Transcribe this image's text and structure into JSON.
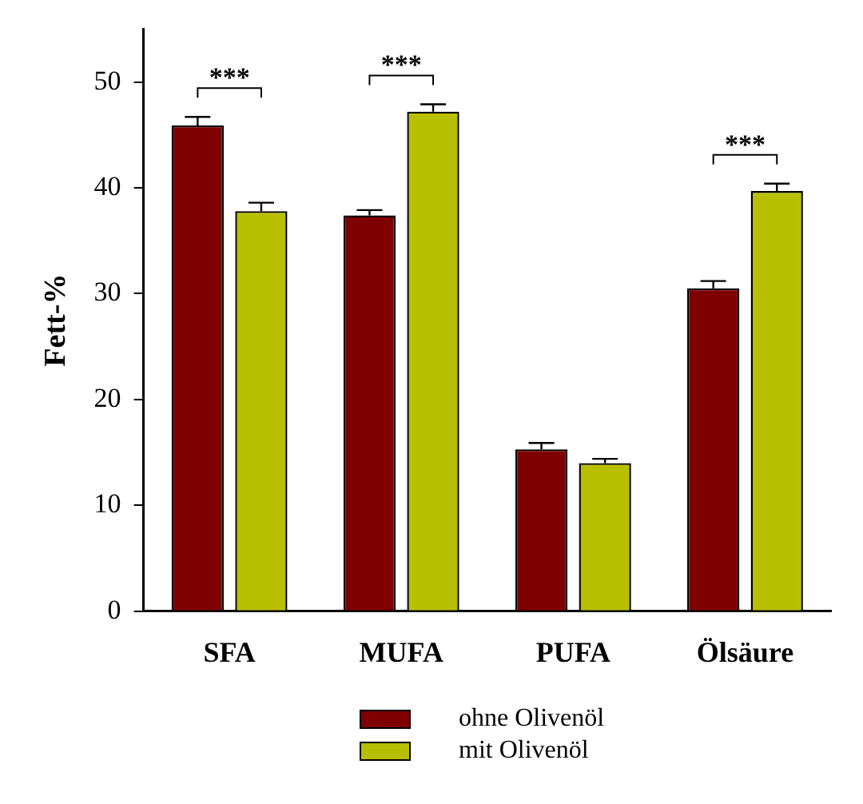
{
  "chart_data": {
    "type": "bar",
    "ylabel": "Fett-%",
    "categories": [
      "SFA",
      "MUFA",
      "PUFA",
      "Ölsäure"
    ],
    "series": [
      {
        "name": "ohne Olivenöl",
        "color": "#7f0000",
        "values": [
          45.9,
          37.4,
          15.3,
          30.5
        ],
        "errors": [
          [
            45.9,
            46.7
          ],
          [
            37.4,
            37.9
          ],
          [
            15.3,
            15.9
          ],
          [
            30.5,
            31.2
          ]
        ]
      },
      {
        "name": "mit Olivenöl",
        "color": "#b8bf00",
        "values": [
          37.8,
          47.2,
          14.0,
          39.7
        ],
        "errors": [
          [
            37.8,
            38.6
          ],
          [
            47.2,
            47.9
          ],
          [
            14.0,
            14.4
          ],
          [
            39.7,
            40.4
          ]
        ]
      }
    ],
    "ylim": [
      0,
      55
    ],
    "yticks": [
      0,
      10,
      20,
      30,
      40,
      50
    ],
    "grid": false,
    "legend": "bottom",
    "annotations": [
      "***",
      "***",
      "***"
    ]
  }
}
